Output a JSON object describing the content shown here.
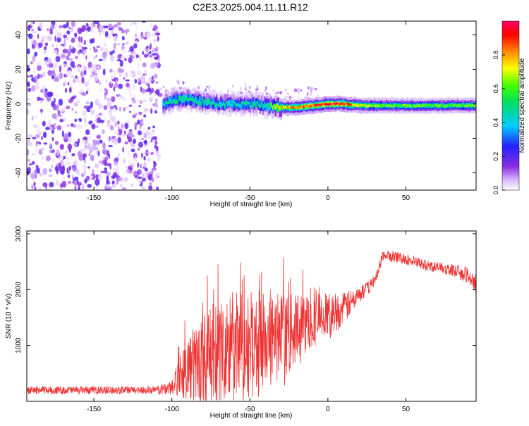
{
  "title": "C2E3.2025.004.11.11.R12",
  "chart_data": [
    {
      "type": "heatmap",
      "xlabel": "Height of straight line (km)",
      "ylabel": "Frequency (Hz)",
      "xlim": [
        -193,
        95
      ],
      "ylim": [
        -50,
        48
      ],
      "xticks": [
        -150,
        -100,
        -50,
        0,
        50
      ],
      "yticks": [
        -40,
        -20,
        0,
        20,
        40
      ],
      "colorbar": {
        "label": "Normalized spectral amplitude",
        "range": [
          0,
          1
        ],
        "ticks": [
          "0.0",
          "0.2",
          "0.4",
          "0.6",
          "0.8"
        ],
        "colormap": "rainbow (white-violet-blue-cyan-green-yellow-orange-red-pink)"
      },
      "ridge": {
        "x": [
          -106,
          -100,
          -90,
          -80,
          -70,
          -60,
          -50,
          -40,
          -30,
          -20,
          -10,
          0,
          10,
          20,
          40,
          60,
          80,
          95
        ],
        "freq": [
          0,
          2,
          3,
          1,
          0,
          0,
          0,
          -1,
          -2,
          -2,
          -1,
          0,
          0,
          -1,
          -1,
          -1,
          -1,
          -1
        ],
        "peak_amplitude": [
          0.45,
          0.5,
          0.5,
          0.5,
          0.45,
          0.45,
          0.45,
          0.5,
          0.75,
          0.8,
          0.9,
          0.95,
          0.9,
          0.7,
          0.6,
          0.6,
          0.6,
          0.65
        ]
      },
      "noise_region_x": [
        -193,
        -108
      ]
    },
    {
      "type": "line",
      "xlabel": "Height of straight line (km)",
      "ylabel": "SNR (10 * v/v)",
      "xlim": [
        -193,
        95
      ],
      "ylim": [
        0,
        3050
      ],
      "xticks": [
        -150,
        -100,
        -50,
        0,
        50
      ],
      "yticks": [
        1000,
        2000,
        3000
      ],
      "color": "#ee3333",
      "series": [
        {
          "x": [
            -193,
            -150,
            -110,
            -100,
            -95,
            -90,
            -80,
            -70,
            -60,
            -50,
            -40,
            -30,
            -20,
            -10,
            0,
            10,
            20,
            30,
            35,
            40,
            50,
            60,
            70,
            80,
            90,
            95
          ],
          "baseline": [
            200,
            200,
            200,
            250,
            500,
            600,
            750,
            850,
            900,
            1000,
            1100,
            1150,
            1300,
            1450,
            1550,
            1650,
            1900,
            2150,
            2600,
            2600,
            2550,
            2450,
            2400,
            2350,
            2250,
            2100
          ],
          "spread": [
            70,
            70,
            70,
            150,
            400,
            600,
            800,
            1000,
            1100,
            1000,
            900,
            800,
            600,
            500,
            400,
            300,
            150,
            100,
            100,
            100,
            100,
            100,
            100,
            100,
            150,
            200
          ]
        }
      ]
    }
  ]
}
